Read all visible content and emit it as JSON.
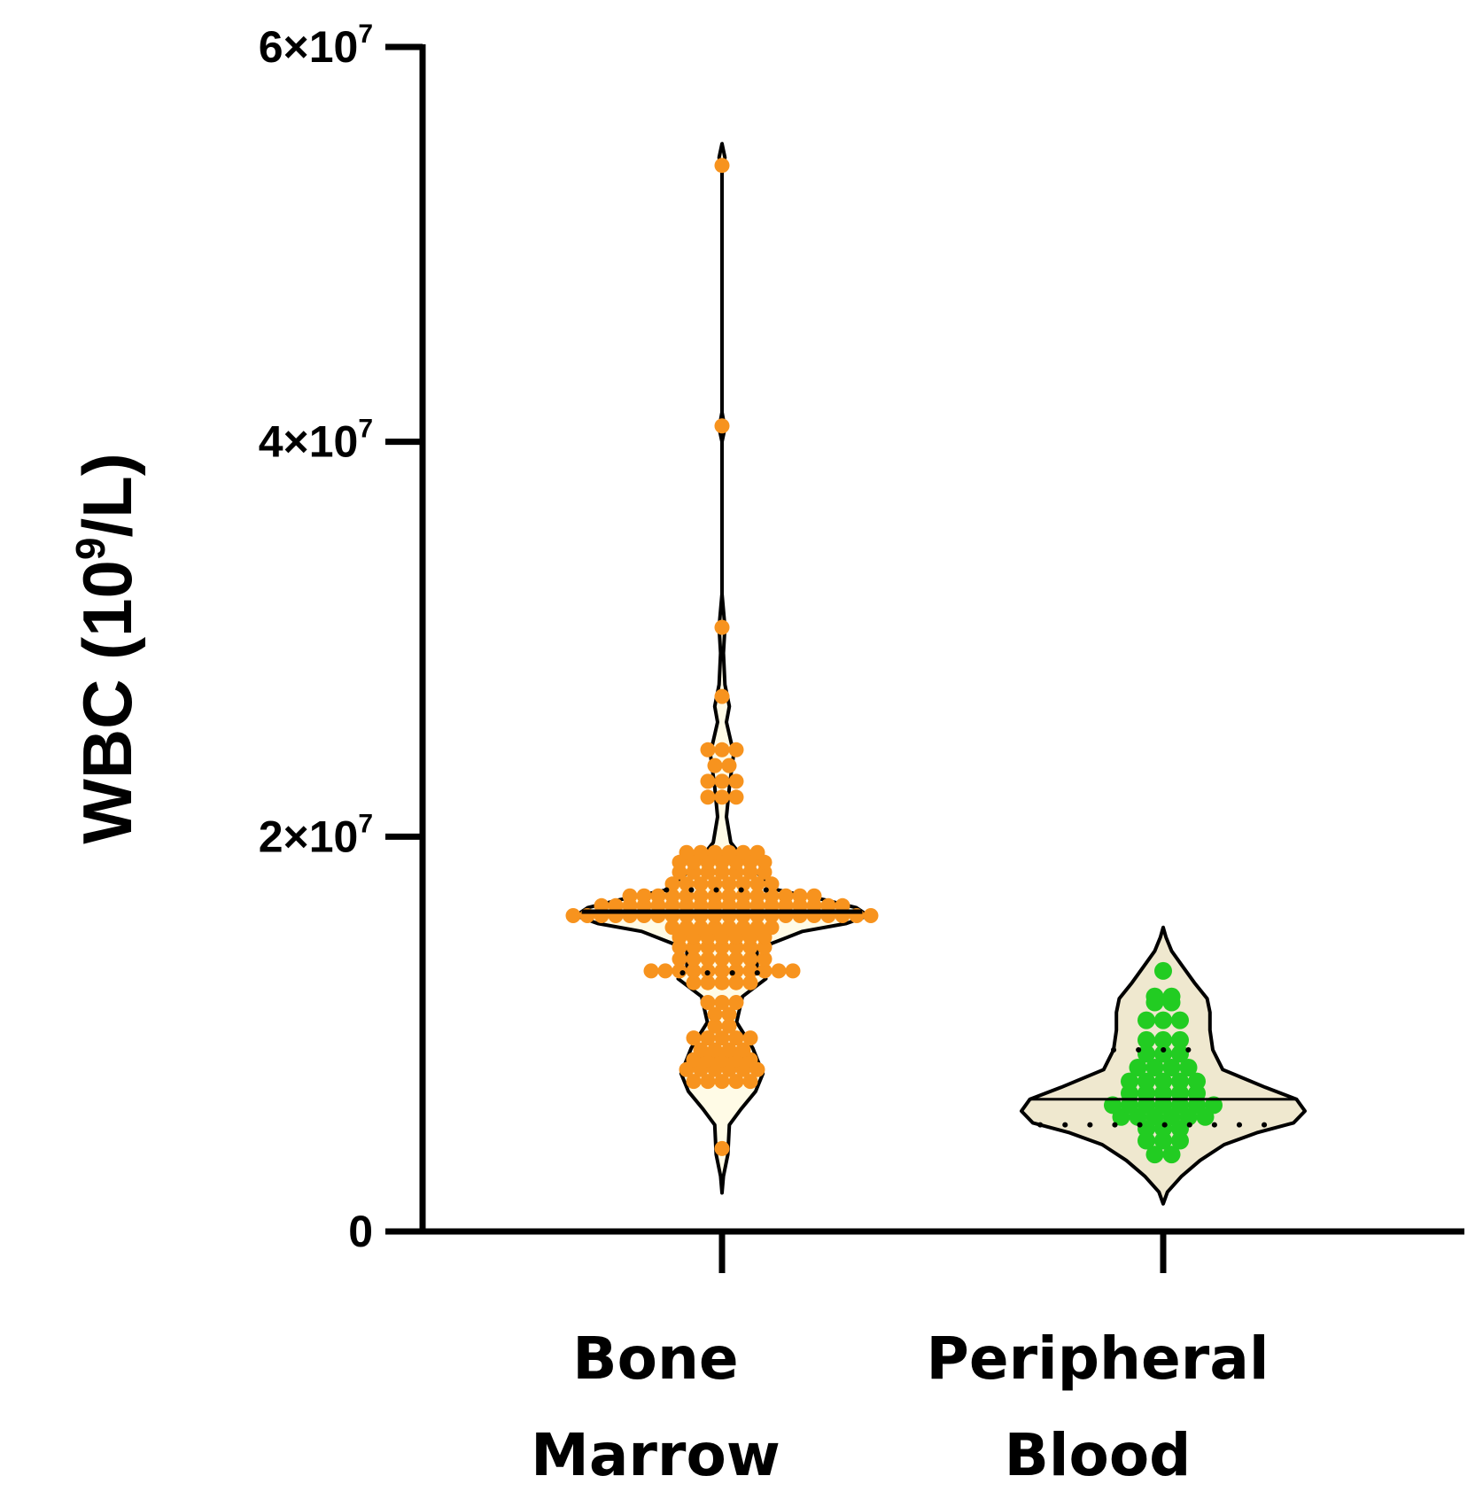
{
  "chart_data": {
    "type": "violin",
    "ylabel": {
      "main": "WBC (10",
      "sup": "9",
      "tail": "/L)"
    },
    "ylim": [
      0,
      60000000
    ],
    "y_ticks": [
      {
        "value": 0,
        "base": "0",
        "exp": ""
      },
      {
        "value": 20000000,
        "base": "2×10",
        "exp": "7"
      },
      {
        "value": 40000000,
        "base": "4×10",
        "exp": "7"
      },
      {
        "value": 60000000,
        "base": "6×10",
        "exp": "7"
      }
    ],
    "categories": [
      {
        "line1": "Bone",
        "line2": "Marrow"
      },
      {
        "line1": "Peripheral",
        "line2": "Blood"
      }
    ],
    "colors": {
      "bone_marrow_points": "#f7931e",
      "peripheral_blood_points": "#22cc22",
      "bone_marrow_fill": "#fffbe6",
      "peripheral_blood_fill": "#efe8cf",
      "outline": "#000000"
    },
    "series": [
      {
        "name": "Bone Marrow",
        "range": [
          1950000,
          55100000
        ],
        "median": 16200000,
        "q1": 13100000,
        "q3": 17300000,
        "density": [
          [
            1950000,
            0.0
          ],
          [
            2800000,
            0.01
          ],
          [
            3900000,
            0.04
          ],
          [
            5400000,
            0.05
          ],
          [
            6200000,
            0.13
          ],
          [
            7100000,
            0.23
          ],
          [
            8000000,
            0.28
          ],
          [
            9300000,
            0.21
          ],
          [
            10600000,
            0.1
          ],
          [
            11900000,
            0.14
          ],
          [
            12800000,
            0.3
          ],
          [
            13400000,
            0.24
          ],
          [
            14300000,
            0.24
          ],
          [
            15200000,
            0.55
          ],
          [
            15600000,
            0.85
          ],
          [
            16000000,
            1.0
          ],
          [
            16400000,
            0.92
          ],
          [
            16800000,
            0.7
          ],
          [
            17300000,
            0.38
          ],
          [
            18400000,
            0.2
          ],
          [
            19700000,
            0.06
          ],
          [
            21000000,
            0.03
          ],
          [
            22500000,
            0.05
          ],
          [
            24200000,
            0.08
          ],
          [
            25800000,
            0.03
          ],
          [
            26600000,
            0.05
          ],
          [
            27700000,
            0.02
          ],
          [
            29300000,
            0.01
          ],
          [
            30600000,
            0.02
          ],
          [
            32300000,
            0.0
          ],
          [
            40000000,
            0.0
          ],
          [
            40700000,
            0.02
          ],
          [
            41500000,
            0.0
          ],
          [
            53700000,
            0.0
          ],
          [
            54400000,
            0.02
          ],
          [
            55100000,
            0.0
          ]
        ],
        "points": [
          54000000,
          40800000,
          30600000,
          27100000,
          24400000,
          24400000,
          24400000,
          23600000,
          23600000,
          22800000,
          22800000,
          22800000,
          22000000,
          22000000,
          22000000,
          19200000,
          19200000,
          19200000,
          19200000,
          19200000,
          19200000,
          18700000,
          18700000,
          18700000,
          18700000,
          18700000,
          18700000,
          18700000,
          18200000,
          18200000,
          18200000,
          18200000,
          18200000,
          18200000,
          18200000,
          17600000,
          17600000,
          17600000,
          17600000,
          17600000,
          17600000,
          17600000,
          17600000,
          17000000,
          17000000,
          17000000,
          17000000,
          17000000,
          17000000,
          17000000,
          17000000,
          17000000,
          17000000,
          17000000,
          17000000,
          17000000,
          17000000,
          16500000,
          16500000,
          16500000,
          16500000,
          16500000,
          16500000,
          16500000,
          16500000,
          16500000,
          16500000,
          16500000,
          16500000,
          16500000,
          16500000,
          16500000,
          16500000,
          16500000,
          16500000,
          16000000,
          16000000,
          16000000,
          16000000,
          16000000,
          16000000,
          16000000,
          16000000,
          16000000,
          16000000,
          16000000,
          16000000,
          16000000,
          16000000,
          16000000,
          16000000,
          16000000,
          16000000,
          16000000,
          16000000,
          16000000,
          16000000,
          15400000,
          15400000,
          15400000,
          15400000,
          15400000,
          15400000,
          15400000,
          15400000,
          14900000,
          14900000,
          14900000,
          14900000,
          14900000,
          14900000,
          14900000,
          14400000,
          14400000,
          14400000,
          14400000,
          14400000,
          14400000,
          14400000,
          13800000,
          13800000,
          13800000,
          13800000,
          13800000,
          13800000,
          13800000,
          13200000,
          13200000,
          13200000,
          13200000,
          13200000,
          13200000,
          13200000,
          13200000,
          13200000,
          13200000,
          13200000,
          12600000,
          12600000,
          12600000,
          12600000,
          12600000,
          11600000,
          11600000,
          11600000,
          11000000,
          11000000,
          10400000,
          10400000,
          9800000,
          9800000,
          9800000,
          9800000,
          9800000,
          9200000,
          9200000,
          9200000,
          9200000,
          8700000,
          8700000,
          8700000,
          8700000,
          8700000,
          8200000,
          8200000,
          8200000,
          8200000,
          8200000,
          8200000,
          7600000,
          7600000,
          7600000,
          7600000,
          7600000,
          4200000
        ]
      },
      {
        "name": "Peripheral Blood",
        "range": [
          1400000,
          15400000
        ],
        "median": 6700000,
        "q1": 5400000,
        "q3": 9200000,
        "density": [
          [
            1400000,
            0.0
          ],
          [
            2000000,
            0.03
          ],
          [
            2800000,
            0.13
          ],
          [
            3600000,
            0.26
          ],
          [
            4400000,
            0.43
          ],
          [
            5000000,
            0.66
          ],
          [
            5500000,
            0.92
          ],
          [
            6100000,
            1.0
          ],
          [
            6700000,
            0.94
          ],
          [
            7300000,
            0.72
          ],
          [
            8200000,
            0.42
          ],
          [
            9200000,
            0.35
          ],
          [
            10200000,
            0.33
          ],
          [
            11100000,
            0.33
          ],
          [
            11800000,
            0.31
          ],
          [
            12600000,
            0.22
          ],
          [
            13400000,
            0.14
          ],
          [
            14200000,
            0.06
          ],
          [
            14900000,
            0.02
          ],
          [
            15400000,
            0.0
          ]
        ],
        "points": [
          13200000,
          11900000,
          11900000,
          11600000,
          11600000,
          10700000,
          10700000,
          10700000,
          9700000,
          9700000,
          9700000,
          9000000,
          9000000,
          9000000,
          8300000,
          8300000,
          8300000,
          8300000,
          7600000,
          7600000,
          7600000,
          7600000,
          7600000,
          7000000,
          7000000,
          7000000,
          7000000,
          7000000,
          6400000,
          6400000,
          6400000,
          6400000,
          6400000,
          6400000,
          6400000,
          5800000,
          5800000,
          5800000,
          5800000,
          5800000,
          5800000,
          5200000,
          5200000,
          5200000,
          4600000,
          4600000,
          4600000,
          3900000,
          3900000
        ]
      }
    ]
  }
}
